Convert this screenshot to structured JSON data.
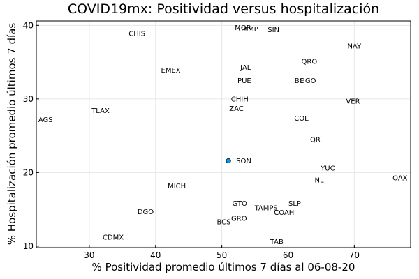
{
  "chart_data": {
    "type": "scatter",
    "title": "COVID19mx: Positividad versus hospitalización",
    "xlabel": "% Positividad promedio últimos 7 días al 06-08-20",
    "ylabel": "% Hospitalización promedio últimos 7 días",
    "xlim": [
      22,
      78.5
    ],
    "ylim": [
      9.8,
      40.6
    ],
    "xticks": [
      30,
      40,
      50,
      60,
      70
    ],
    "yticks": [
      10,
      20,
      30,
      40
    ],
    "grid": true,
    "highlight": {
      "label": "SON",
      "x": 51,
      "y": 21.6,
      "color": "#009af9"
    },
    "points": [
      {
        "label": "CHIS",
        "x": 37.2,
        "y": 38.9
      },
      {
        "label": "MOR",
        "x": 53.2,
        "y": 39.7
      },
      {
        "label": "CAMP",
        "x": 54.0,
        "y": 39.5
      },
      {
        "label": "SIN",
        "x": 57.8,
        "y": 39.4
      },
      {
        "label": "NAY",
        "x": 70.0,
        "y": 37.2
      },
      {
        "label": "QRO",
        "x": 63.2,
        "y": 35.1
      },
      {
        "label": "JAL",
        "x": 53.6,
        "y": 34.3
      },
      {
        "label": "EMEX",
        "x": 42.3,
        "y": 33.9
      },
      {
        "label": "PUE",
        "x": 53.4,
        "y": 32.5
      },
      {
        "label": "BC",
        "x": 61.7,
        "y": 32.5
      },
      {
        "label": "HGO",
        "x": 63.0,
        "y": 32.5
      },
      {
        "label": "CHIH",
        "x": 52.7,
        "y": 30.0
      },
      {
        "label": "VER",
        "x": 69.8,
        "y": 29.7
      },
      {
        "label": "ZAC",
        "x": 52.2,
        "y": 28.7
      },
      {
        "label": "TLAX",
        "x": 31.7,
        "y": 28.4
      },
      {
        "label": "AGS",
        "x": 23.4,
        "y": 27.2
      },
      {
        "label": "COL",
        "x": 62.0,
        "y": 27.4
      },
      {
        "label": "QR",
        "x": 64.1,
        "y": 24.5
      },
      {
        "label": "YUC",
        "x": 66.0,
        "y": 20.6
      },
      {
        "label": "OAX",
        "x": 76.9,
        "y": 19.3
      },
      {
        "label": "NL",
        "x": 64.7,
        "y": 19.0
      },
      {
        "label": "MICH",
        "x": 43.2,
        "y": 18.2
      },
      {
        "label": "GTO",
        "x": 52.7,
        "y": 15.8
      },
      {
        "label": "SLP",
        "x": 61.0,
        "y": 15.8
      },
      {
        "label": "TAMPS",
        "x": 56.7,
        "y": 15.2
      },
      {
        "label": "DGO",
        "x": 38.5,
        "y": 14.7
      },
      {
        "label": "COAH",
        "x": 59.4,
        "y": 14.6
      },
      {
        "label": "GRO",
        "x": 52.6,
        "y": 13.8
      },
      {
        "label": "BCS",
        "x": 50.3,
        "y": 13.3
      },
      {
        "label": "CDMX",
        "x": 33.6,
        "y": 11.2
      },
      {
        "label": "TAB",
        "x": 58.3,
        "y": 10.6
      }
    ]
  }
}
